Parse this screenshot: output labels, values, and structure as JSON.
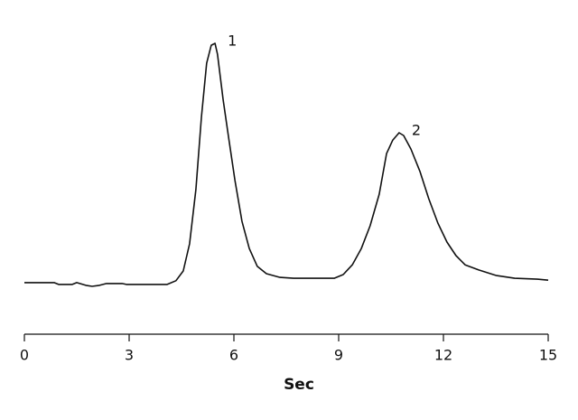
{
  "chart_data": {
    "type": "line",
    "x_label": "Sec",
    "xlim": [
      0,
      15
    ],
    "xticks": [
      0,
      3,
      6,
      9,
      12,
      15
    ],
    "ylim": [
      0,
      100
    ],
    "peak_labels": [
      "1",
      "2"
    ],
    "series": [
      {
        "color": "#111111",
        "x": [
          0,
          0.85,
          0.98,
          1.37,
          1.5,
          1.76,
          1.94,
          2.15,
          2.35,
          2.8,
          2.92,
          4.09,
          4.34,
          4.55,
          4.73,
          4.91,
          5.07,
          5.22,
          5.35,
          5.46,
          5.53,
          5.69,
          5.84,
          6.03,
          6.23,
          6.44,
          6.67,
          6.93,
          7.32,
          7.71,
          8.87,
          9.13,
          9.39,
          9.65,
          9.9,
          10.16,
          10.37,
          10.55,
          10.73,
          10.86,
          11.07,
          11.33,
          11.58,
          11.84,
          12.1,
          12.36,
          12.62,
          13.01,
          13.52,
          14.04,
          14.69,
          15
        ],
        "values": [
          16.8,
          16.8,
          16.2,
          16.2,
          16.8,
          15.9,
          15.6,
          15.9,
          16.5,
          16.5,
          16.2,
          16.2,
          17.4,
          20.6,
          29.4,
          47.1,
          70.6,
          88.2,
          94.1,
          94.7,
          91.2,
          76.5,
          64.7,
          50,
          36.8,
          27.9,
          22.1,
          19.7,
          18.5,
          18.2,
          18.2,
          19.4,
          22.6,
          27.9,
          35.3,
          45.6,
          58.8,
          63.2,
          65.6,
          64.7,
          60.3,
          52.9,
          44.1,
          36.2,
          30,
          25.6,
          22.6,
          20.9,
          19.1,
          18.2,
          17.9,
          17.6
        ]
      }
    ]
  }
}
